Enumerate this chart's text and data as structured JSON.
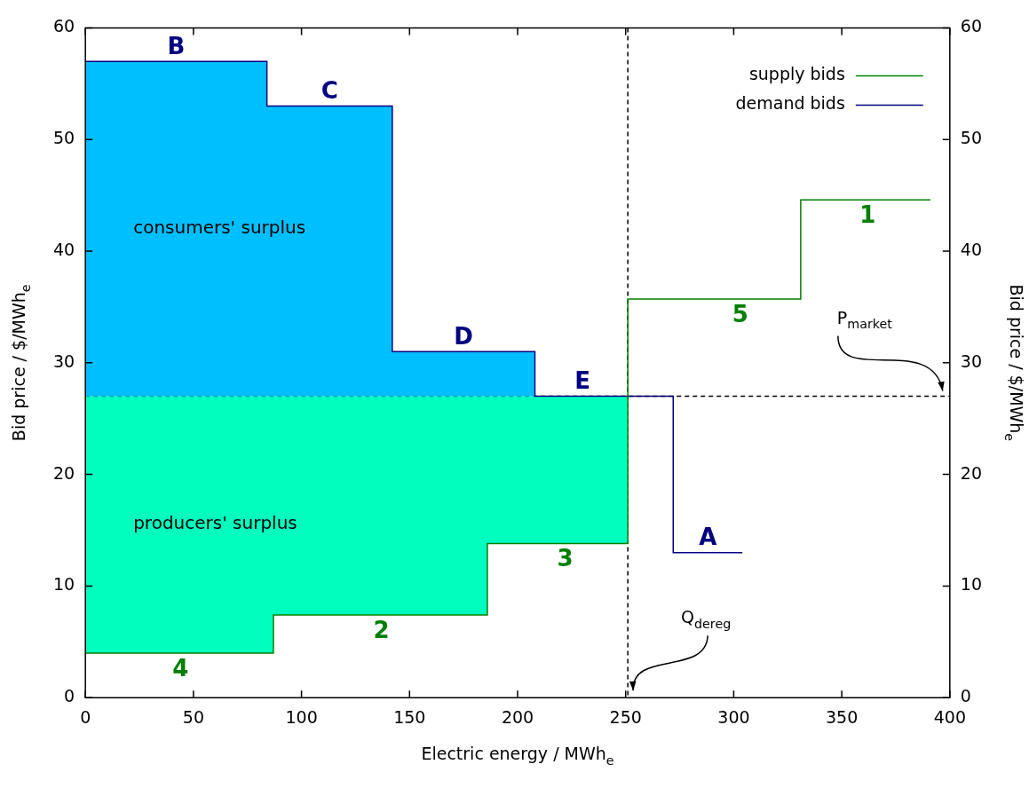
{
  "chart_data": {
    "type": "step",
    "xlabel": "Electric energy / MWh$_{e}$",
    "ylabel": "Bid price / $/MWh$_{e}$",
    "y2label": "Bid price / $/MWh$_{e}$",
    "xlim": [
      0,
      400
    ],
    "xticks": [
      0,
      50,
      100,
      150,
      200,
      250,
      300,
      350,
      400
    ],
    "ylim": [
      0,
      60
    ],
    "yticks": [
      0,
      10,
      20,
      30,
      40,
      50,
      60
    ],
    "y2lim": [
      0,
      60
    ],
    "y2ticks": [
      0,
      10,
      20,
      30,
      40,
      50,
      60
    ],
    "grid": false,
    "legend": "top right",
    "series": [
      {
        "name": "consumers' surplus",
        "type": "area",
        "color": "#00bfff",
        "x": [
          0,
          84,
          142,
          208
        ],
        "values": [
          57,
          53,
          31,
          27
        ]
      },
      {
        "name": "producers' surplus",
        "type": "area",
        "color": "#00ffbf",
        "x": [
          0,
          0,
          87,
          186,
          251,
          251
        ],
        "values": [
          27,
          4,
          7.4,
          13.8,
          13.8,
          27
        ]
      },
      {
        "name": "supply bids",
        "type": "step",
        "color": "#007f00",
        "x": [
          0,
          87,
          186,
          251,
          331,
          391
        ],
        "values": [
          4,
          7.4,
          13.8,
          35.7,
          44.6,
          44.6
        ]
      },
      {
        "name": "demand bids",
        "type": "step",
        "color": "#000080",
        "x": [
          0,
          84,
          142,
          208,
          272,
          304
        ],
        "values": [
          57,
          53,
          31,
          27,
          13,
          13
        ]
      }
    ],
    "annotations": [
      {
        "text": "B",
        "x": 42,
        "y": 57
      },
      {
        "text": "C",
        "x": 113,
        "y": 53
      },
      {
        "text": "D",
        "x": 175,
        "y": 31
      },
      {
        "text": "E",
        "x": 230,
        "y": 27
      },
      {
        "text": "A",
        "x": 288,
        "y": 13
      },
      {
        "text": "4",
        "x": 44,
        "y": 4
      },
      {
        "text": "2",
        "x": 137,
        "y": 7.4
      },
      {
        "text": "3",
        "x": 222,
        "y": 13.8
      },
      {
        "text": "5",
        "x": 303,
        "y": 35.7
      },
      {
        "text": "1",
        "x": 362,
        "y": 44.6
      }
    ],
    "ref_lines": [
      {
        "axis": "x",
        "value": 251,
        "label": "Q$_{dereg}$",
        "line_style": "dashed",
        "color": "#000000"
      },
      {
        "axis": "y",
        "value": 27,
        "label": "P$_{market}$",
        "line_style": "dashed",
        "color": "#000000"
      }
    ]
  }
}
